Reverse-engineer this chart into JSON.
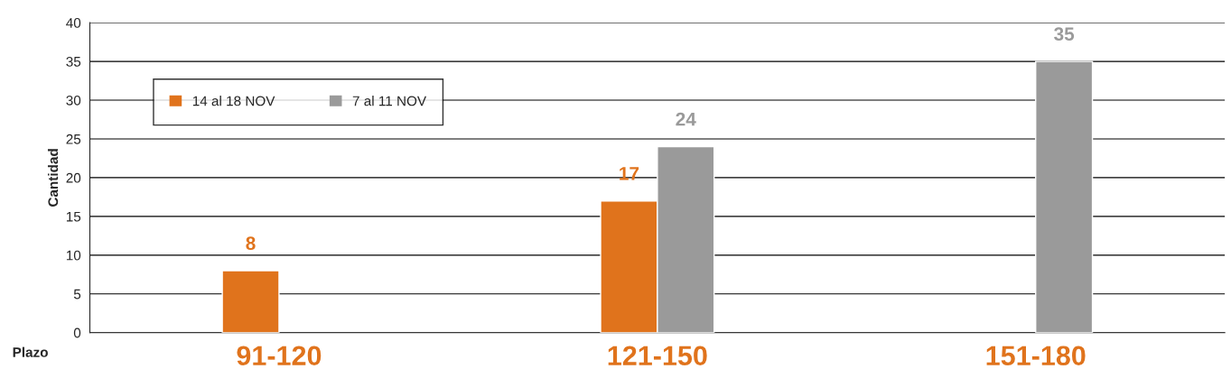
{
  "chart_data": {
    "type": "bar",
    "xlabel": "Plazo",
    "ylabel": "Cantidad",
    "categories": [
      "91-120",
      "121-150",
      "151-180"
    ],
    "series": [
      {
        "name": "14 al 18 NOV",
        "color": "#e0731c",
        "values": [
          8,
          17,
          null
        ]
      },
      {
        "name": "7 al 11 NOV",
        "color": "#9a9a9a",
        "values": [
          null,
          24,
          35
        ]
      }
    ],
    "ylim": [
      0,
      40
    ],
    "yticks": [
      0,
      5,
      10,
      15,
      20,
      25,
      30,
      35,
      40
    ],
    "grid": "y",
    "legend": "top left",
    "data_labels": true
  }
}
